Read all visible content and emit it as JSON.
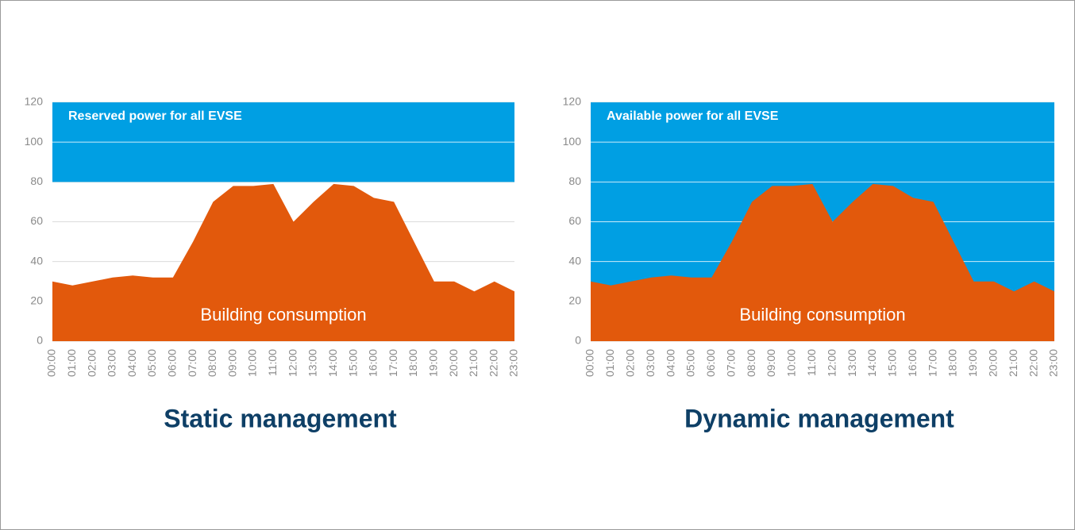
{
  "chart_data": [
    {
      "type": "area",
      "title": "Static management",
      "categories": [
        "00:00",
        "01:00",
        "02:00",
        "03:00",
        "04:00",
        "05:00",
        "06:00",
        "07:00",
        "08:00",
        "09:00",
        "10:00",
        "11:00",
        "12:00",
        "13:00",
        "14:00",
        "15:00",
        "16:00",
        "17:00",
        "18:00",
        "19:00",
        "20:00",
        "21:00",
        "22:00",
        "23:00"
      ],
      "series": [
        {
          "name": "Building consumption",
          "color": "#e2590c",
          "values": [
            30,
            28,
            30,
            32,
            33,
            32,
            32,
            50,
            70,
            78,
            78,
            79,
            60,
            70,
            79,
            78,
            72,
            70,
            50,
            30,
            30,
            25,
            30,
            25
          ]
        }
      ],
      "band": {
        "label": "Reserved power for all EVSE",
        "from": 80,
        "to": 120,
        "color": "#009fe3"
      },
      "ylim": [
        0,
        120
      ],
      "yticks": [
        0,
        20,
        40,
        60,
        80,
        100,
        120
      ],
      "grid": true
    },
    {
      "type": "area",
      "title": "Dynamic management",
      "categories": [
        "00:00",
        "01:00",
        "02:00",
        "03:00",
        "04:00",
        "05:00",
        "06:00",
        "07:00",
        "08:00",
        "09:00",
        "10:00",
        "11:00",
        "12:00",
        "13:00",
        "14:00",
        "15:00",
        "16:00",
        "17:00",
        "18:00",
        "19:00",
        "20:00",
        "21:00",
        "22:00",
        "23:00"
      ],
      "series": [
        {
          "name": "Building consumption",
          "color": "#e2590c",
          "values": [
            30,
            28,
            30,
            32,
            33,
            32,
            32,
            50,
            70,
            78,
            78,
            79,
            60,
            70,
            79,
            78,
            72,
            70,
            50,
            30,
            30,
            25,
            30,
            25
          ]
        }
      ],
      "band": {
        "label": "Available power for all EVSE",
        "from": 0,
        "to": 120,
        "color": "#009fe3"
      },
      "ylim": [
        0,
        120
      ],
      "yticks": [
        0,
        20,
        40,
        60,
        80,
        100,
        120
      ],
      "grid": true
    }
  ]
}
